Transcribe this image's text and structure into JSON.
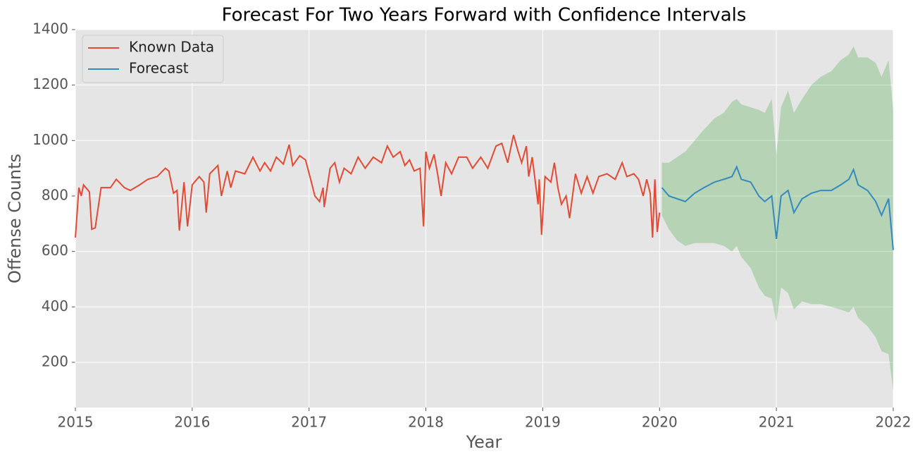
{
  "chart_data": {
    "type": "line",
    "title": "Forecast For Two Years Forward with Confidence Intervals",
    "x_label": "Year",
    "y_label": "Offense Counts",
    "xlim": [
      2015,
      2022
    ],
    "xticks": [
      2015,
      2016,
      2017,
      2018,
      2019,
      2020,
      2021,
      2022
    ],
    "ylim": [
      37,
      1400
    ],
    "yticks": [
      200,
      400,
      600,
      800,
      1000,
      1200,
      1400
    ],
    "grid": true,
    "legend": "upper-left",
    "band_color": "#2ca02c",
    "series": [
      {
        "name": "Known Data",
        "color": "#e24a33",
        "x": [
          2015.0,
          2015.03,
          2015.05,
          2015.07,
          2015.12,
          2015.14,
          2015.17,
          2015.22,
          2015.3,
          2015.35,
          2015.42,
          2015.47,
          2015.55,
          2015.62,
          2015.7,
          2015.77,
          2015.8,
          2015.84,
          2015.87,
          2015.89,
          2015.93,
          2015.96,
          2016.0,
          2016.06,
          2016.1,
          2016.12,
          2016.15,
          2016.22,
          2016.25,
          2016.3,
          2016.33,
          2016.37,
          2016.45,
          2016.52,
          2016.58,
          2016.62,
          2016.67,
          2016.72,
          2016.78,
          2016.83,
          2016.86,
          2016.92,
          2016.97,
          2017.02,
          2017.05,
          2017.09,
          2017.12,
          2017.13,
          2017.18,
          2017.22,
          2017.26,
          2017.3,
          2017.36,
          2017.42,
          2017.48,
          2017.55,
          2017.62,
          2017.67,
          2017.72,
          2017.78,
          2017.82,
          2017.86,
          2017.9,
          2017.95,
          2017.98,
          2018.0,
          2018.03,
          2018.07,
          2018.1,
          2018.13,
          2018.17,
          2018.22,
          2018.28,
          2018.35,
          2018.4,
          2018.47,
          2018.53,
          2018.6,
          2018.65,
          2018.7,
          2018.75,
          2018.79,
          2018.82,
          2018.86,
          2018.88,
          2018.91,
          2018.94,
          2018.96,
          2018.97,
          2018.99,
          2019.02,
          2019.07,
          2019.1,
          2019.13,
          2019.16,
          2019.2,
          2019.23,
          2019.28,
          2019.33,
          2019.38,
          2019.43,
          2019.48,
          2019.55,
          2019.62,
          2019.68,
          2019.72,
          2019.78,
          2019.82,
          2019.86,
          2019.89,
          2019.92,
          2019.94,
          2019.96,
          2019.98,
          2020.0
        ],
        "values": [
          650,
          830,
          800,
          840,
          815,
          680,
          685,
          830,
          830,
          860,
          830,
          820,
          840,
          860,
          870,
          900,
          890,
          810,
          820,
          675,
          850,
          690,
          840,
          870,
          850,
          740,
          880,
          910,
          800,
          890,
          830,
          890,
          880,
          940,
          890,
          920,
          890,
          940,
          915,
          985,
          910,
          945,
          930,
          850,
          800,
          780,
          830,
          760,
          900,
          920,
          850,
          900,
          880,
          940,
          900,
          940,
          920,
          980,
          940,
          960,
          910,
          930,
          890,
          900,
          690,
          960,
          900,
          950,
          880,
          800,
          920,
          880,
          940,
          940,
          900,
          940,
          900,
          980,
          990,
          920,
          1020,
          960,
          920,
          980,
          870,
          940,
          840,
          770,
          860,
          660,
          870,
          850,
          920,
          830,
          770,
          800,
          720,
          880,
          810,
          870,
          810,
          870,
          880,
          860,
          920,
          870,
          880,
          860,
          800,
          860,
          810,
          650,
          860,
          670,
          740
        ]
      },
      {
        "name": "Forecast",
        "color": "#348abd",
        "x": [
          2020.02,
          2020.08,
          2020.15,
          2020.22,
          2020.3,
          2020.38,
          2020.47,
          2020.55,
          2020.62,
          2020.66,
          2020.7,
          2020.78,
          2020.85,
          2020.9,
          2020.96,
          2021.0,
          2021.04,
          2021.1,
          2021.15,
          2021.22,
          2021.3,
          2021.38,
          2021.47,
          2021.55,
          2021.62,
          2021.66,
          2021.7,
          2021.78,
          2021.85,
          2021.9,
          2021.96,
          2022.0
        ],
        "values": [
          830,
          800,
          790,
          780,
          810,
          830,
          850,
          860,
          870,
          905,
          860,
          850,
          800,
          780,
          800,
          645,
          800,
          820,
          740,
          790,
          810,
          820,
          820,
          840,
          860,
          895,
          840,
          820,
          780,
          730,
          790,
          605
        ],
        "lower": [
          730,
          680,
          640,
          620,
          630,
          630,
          630,
          620,
          600,
          620,
          580,
          540,
          470,
          440,
          430,
          345,
          470,
          450,
          390,
          420,
          410,
          410,
          400,
          390,
          380,
          400,
          360,
          330,
          290,
          240,
          230,
          95
        ],
        "upper": [
          920,
          920,
          940,
          960,
          1000,
          1040,
          1080,
          1100,
          1140,
          1150,
          1130,
          1120,
          1110,
          1100,
          1150,
          950,
          1120,
          1180,
          1100,
          1150,
          1200,
          1230,
          1250,
          1290,
          1310,
          1340,
          1300,
          1300,
          1280,
          1230,
          1290,
          1110
        ]
      }
    ]
  }
}
